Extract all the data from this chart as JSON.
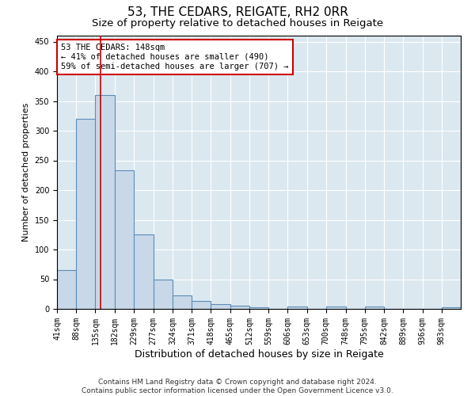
{
  "title": "53, THE CEDARS, REIGATE, RH2 0RR",
  "subtitle": "Size of property relative to detached houses in Reigate",
  "xlabel": "Distribution of detached houses by size in Reigate",
  "ylabel": "Number of detached properties",
  "bar_values": [
    65,
    320,
    360,
    233,
    125,
    50,
    23,
    13,
    8,
    5,
    3,
    0,
    4,
    0,
    4,
    0,
    4,
    0,
    0,
    0,
    3
  ],
  "bin_edges": [
    41,
    88,
    135,
    182,
    229,
    277,
    324,
    371,
    418,
    465,
    512,
    559,
    606,
    653,
    700,
    748,
    795,
    842,
    889,
    936,
    983,
    1030
  ],
  "tick_labels": [
    "41sqm",
    "88sqm",
    "135sqm",
    "182sqm",
    "229sqm",
    "277sqm",
    "324sqm",
    "371sqm",
    "418sqm",
    "465sqm",
    "512sqm",
    "559sqm",
    "606sqm",
    "653sqm",
    "700sqm",
    "748sqm",
    "795sqm",
    "842sqm",
    "889sqm",
    "936sqm",
    "983sqm"
  ],
  "bar_color": "#c8d8e8",
  "bar_edgecolor": "#5b8db8",
  "bar_linewidth": 0.8,
  "redline_x": 148,
  "redline_color": "#cc0000",
  "annotation_text": "53 THE CEDARS: 148sqm\n← 41% of detached houses are smaller (490)\n59% of semi-detached houses are larger (707) →",
  "annotation_box_edgecolor": "#cc0000",
  "annotation_box_facecolor": "white",
  "ylim": [
    0,
    460
  ],
  "yticks": [
    0,
    50,
    100,
    150,
    200,
    250,
    300,
    350,
    400,
    450
  ],
  "plot_background": "#dce8f0",
  "footer_line1": "Contains HM Land Registry data © Crown copyright and database right 2024.",
  "footer_line2": "Contains public sector information licensed under the Open Government Licence v3.0.",
  "title_fontsize": 11,
  "subtitle_fontsize": 9.5,
  "xlabel_fontsize": 9,
  "ylabel_fontsize": 8,
  "tick_fontsize": 7,
  "footer_fontsize": 6.5
}
